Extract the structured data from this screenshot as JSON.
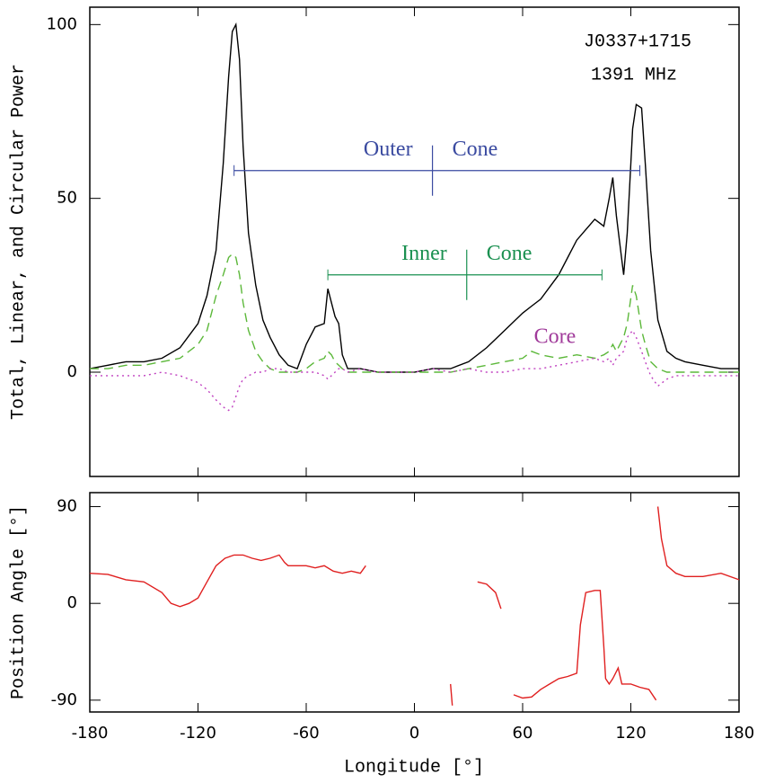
{
  "chart_data": [
    {
      "type": "line",
      "ylabel": "Total, Linear, and Circular Power",
      "source": "J0337+1715",
      "frequency": "1391 MHz",
      "core_label": "Core",
      "brackets": [
        {
          "left_label": "Outer",
          "right_label": "Cone",
          "x": [
            -100,
            125
          ],
          "center": 10,
          "y": 58,
          "color": "#3a4aa0"
        },
        {
          "left_label": "Inner",
          "right_label": "Cone",
          "x": [
            -48,
            104
          ],
          "center": 29,
          "y": 28,
          "color": "#1a9050"
        }
      ],
      "core_color": "#a03a9a",
      "xlim": [
        -180,
        180
      ],
      "ylim": [
        -30,
        105
      ],
      "xticks": [
        -180,
        -120,
        -60,
        0,
        60,
        120,
        180
      ],
      "yticks": [
        0,
        50,
        100
      ],
      "x": [
        -180,
        -170,
        -160,
        -150,
        -140,
        -130,
        -120,
        -115,
        -110,
        -106,
        -103,
        -101,
        -99,
        -97,
        -95,
        -92,
        -88,
        -84,
        -80,
        -75,
        -70,
        -65,
        -60,
        -55,
        -50,
        -48,
        -46,
        -44,
        -42,
        -40,
        -37,
        -30,
        -20,
        -10,
        0,
        10,
        20,
        30,
        40,
        50,
        60,
        65,
        70,
        80,
        90,
        100,
        105,
        108,
        110,
        112,
        116,
        118,
        121,
        123,
        126,
        128,
        131,
        135,
        140,
        145,
        150,
        160,
        170,
        180
      ],
      "series": [
        {
          "color": "#000000",
          "dash": "solid",
          "values": [
            1,
            2,
            3,
            3,
            4,
            7,
            14,
            22,
            35,
            60,
            85,
            98,
            100,
            90,
            65,
            40,
            25,
            15,
            10,
            5,
            2,
            1,
            8,
            13,
            14,
            24,
            20,
            16,
            14,
            5,
            1,
            1,
            0,
            0,
            0,
            1,
            1,
            3,
            7,
            12,
            17,
            19,
            21,
            28,
            38,
            44,
            42,
            50,
            56,
            45,
            28,
            40,
            70,
            77,
            76,
            60,
            35,
            15,
            6,
            4,
            3,
            2,
            1,
            1
          ]
        },
        {
          "color": "#5cb83a",
          "dash": "dashed",
          "values": [
            1,
            1,
            2,
            2,
            3,
            4,
            8,
            12,
            22,
            28,
            33,
            34,
            33,
            28,
            20,
            12,
            6,
            3,
            1,
            0,
            0,
            0,
            1,
            3,
            4,
            6,
            5,
            3,
            2,
            1,
            0,
            0,
            0,
            0,
            0,
            0,
            0,
            1,
            2,
            3,
            4,
            6,
            5,
            4,
            5,
            4,
            5,
            6,
            8,
            6,
            10,
            14,
            25,
            22,
            12,
            8,
            3,
            1,
            0,
            0,
            0,
            0,
            0,
            0
          ]
        },
        {
          "color": "#c040c0",
          "dash": "dotted",
          "values": [
            -1,
            -1,
            -1,
            -1,
            0,
            -1,
            -3,
            -5,
            -8,
            -10,
            -11,
            -10,
            -7,
            -4,
            -2,
            -1,
            0,
            0,
            1,
            1,
            0,
            0,
            0,
            0,
            -1,
            -2,
            -1,
            0,
            1,
            1,
            0,
            1,
            0,
            0,
            0,
            1,
            0,
            1,
            0,
            0,
            1,
            1,
            1,
            2,
            3,
            4,
            3,
            4,
            2,
            4,
            6,
            10,
            12,
            10,
            6,
            3,
            -1,
            -4,
            -2,
            -1,
            -1,
            -1,
            -1,
            -1
          ]
        }
      ]
    },
    {
      "type": "line",
      "ylabel": "Position Angle [°]",
      "xlabel": "Longitude [°]",
      "xlim": [
        -180,
        180
      ],
      "ylim": [
        -101,
        103
      ],
      "xticks": [
        -180,
        -120,
        -60,
        0,
        60,
        120,
        180
      ],
      "yticks": [
        -90,
        0,
        90
      ],
      "x": [
        -180,
        -170,
        -160,
        -150,
        -140,
        -135,
        -130,
        -125,
        -120,
        -115,
        -110,
        -105,
        -100,
        -95,
        -90,
        -85,
        -80,
        -75,
        -72,
        -70,
        -60,
        -55,
        -50,
        -45,
        -40,
        -35,
        -30,
        -27,
        -20,
        20,
        21,
        28,
        35,
        40,
        45,
        48,
        50,
        55,
        60,
        65,
        70,
        75,
        80,
        85,
        90,
        92,
        95,
        100,
        103,
        105,
        106,
        108,
        110,
        113,
        115,
        120,
        125,
        130,
        134,
        135,
        135,
        137,
        140,
        145,
        150,
        160,
        170,
        180
      ],
      "series": [
        {
          "color": "#e02020",
          "dash": "solid",
          "values": [
            28,
            27,
            22,
            20,
            10,
            0,
            -3,
            0,
            5,
            20,
            35,
            42,
            45,
            45,
            42,
            40,
            42,
            45,
            38,
            35,
            35,
            33,
            35,
            30,
            28,
            30,
            28,
            35,
            null,
            -75,
            -95,
            null,
            20,
            18,
            10,
            -5,
            null,
            -85,
            -88,
            -87,
            -80,
            -75,
            -70,
            -68,
            -65,
            -20,
            10,
            12,
            12,
            -40,
            -70,
            -75,
            -70,
            -60,
            -75,
            -75,
            -78,
            -80,
            -90,
            null,
            90,
            60,
            35,
            28,
            25,
            25,
            28,
            22
          ]
        }
      ]
    }
  ]
}
